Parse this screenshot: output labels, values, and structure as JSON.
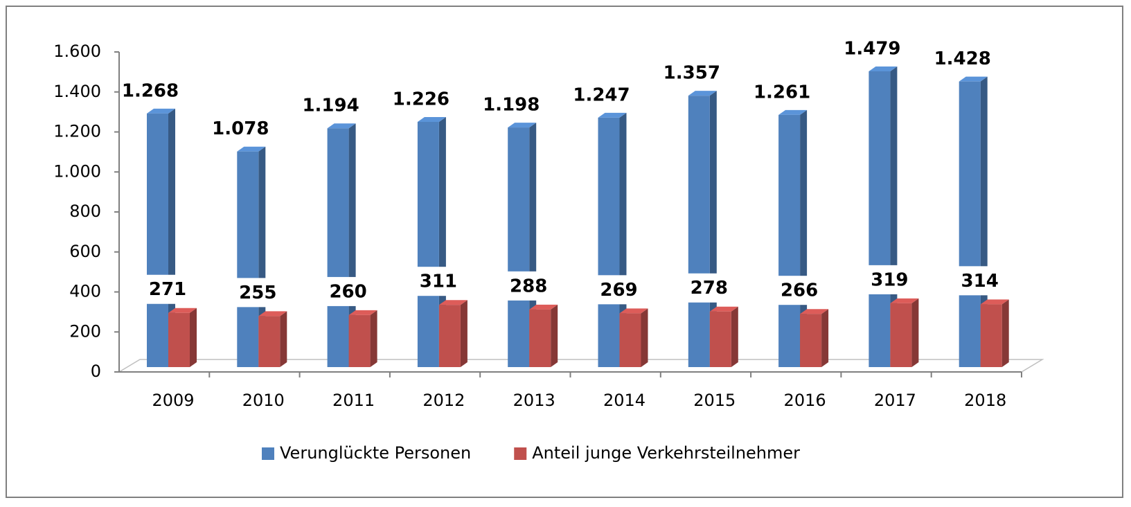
{
  "chart_data": {
    "type": "bar3d",
    "categories": [
      "2009",
      "2010",
      "2011",
      "2012",
      "2013",
      "2014",
      "2015",
      "2016",
      "2017",
      "2018"
    ],
    "series": [
      {
        "name": "Verunglückte Personen",
        "color": "#4f81bd",
        "values": [
          1268,
          1078,
          1194,
          1226,
          1198,
          1247,
          1357,
          1261,
          1479,
          1428
        ],
        "value_labels": [
          "1.268",
          "1.078",
          "1.194",
          "1.226",
          "1.198",
          "1.247",
          "1.357",
          "1.261",
          "1.479",
          "1.428"
        ]
      },
      {
        "name": "Anteil junge Verkehrsteilnehmer",
        "color": "#c0504d",
        "values": [
          271,
          255,
          260,
          311,
          288,
          269,
          278,
          266,
          319,
          314
        ]
      }
    ],
    "ylim": [
      0,
      1600
    ],
    "yticks": [
      0,
      200,
      400,
      600,
      800,
      {
        "value": 1000,
        "label": "1.000"
      },
      {
        "value": 1200,
        "label": "1.200"
      },
      {
        "value": 1400,
        "label": "1.400"
      },
      {
        "value": 1600,
        "label": "1.600"
      }
    ],
    "legend": "bottom"
  }
}
